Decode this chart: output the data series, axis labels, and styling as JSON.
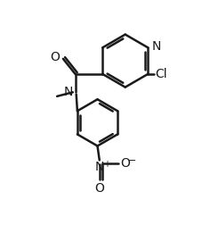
{
  "bg_color": "#ffffff",
  "line_color": "#1a1a1a",
  "lw": 1.8,
  "figsize": [
    2.27,
    2.52
  ],
  "dpi": 100,
  "xlim": [
    0,
    10
  ],
  "ylim": [
    0,
    11.1
  ]
}
